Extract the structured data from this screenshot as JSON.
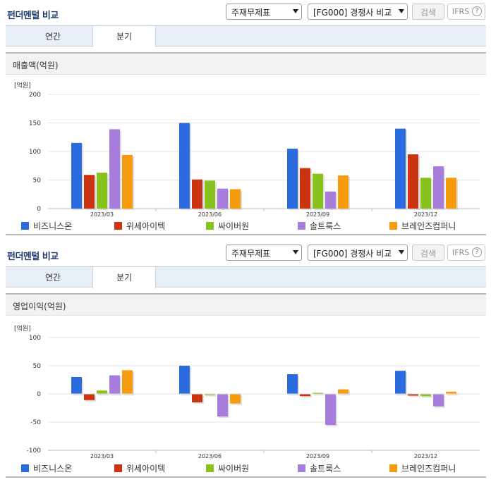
{
  "colors": [
    "#2a6be0",
    "#cc3311",
    "#88c21d",
    "#a77ddb",
    "#f59b0d"
  ],
  "panels": [
    {
      "header": {
        "title": "펀더멘털 비교",
        "select1": "주재무제표",
        "select2": "[FG000] 경쟁사 비교",
        "search_button": "검색",
        "ifrs": "IFRS",
        "help": "?"
      },
      "tabs": [
        "연간",
        "분기"
      ],
      "active_tab": 1,
      "chart_title": "매출액(억원)",
      "legend": [
        "비즈니스온",
        "위세아이텍",
        "싸이버원",
        "솔트룩스",
        "브레인즈컴퍼니"
      ]
    },
    {
      "header": {
        "title": "펀더멘털 비교",
        "select1": "주재무제표",
        "select2": "[FG000] 경쟁사 비교",
        "search_button": "검색",
        "ifrs": "IFRS",
        "help": "?"
      },
      "tabs": [
        "연간",
        "분기"
      ],
      "active_tab": 1,
      "chart_title": "영업이익(억원)",
      "legend": [
        "비즈니스온",
        "위세아이텍",
        "싸이버원",
        "솔트룩스",
        "브레인즈컴퍼니"
      ]
    }
  ],
  "chart_data": [
    {
      "type": "bar",
      "unit_label": "[억원]",
      "categories": [
        "2023/03",
        "2023/06",
        "2023/09",
        "2023/12"
      ],
      "ylim": [
        0,
        200
      ],
      "yticks": [
        0,
        50,
        100,
        150,
        200
      ],
      "series": [
        {
          "name": "비즈니스온",
          "values": [
            115,
            150,
            105,
            140
          ]
        },
        {
          "name": "위세아이텍",
          "values": [
            59,
            51,
            71,
            95
          ]
        },
        {
          "name": "싸이버원",
          "values": [
            63,
            49,
            61,
            54
          ]
        },
        {
          "name": "솔트룩스",
          "values": [
            139,
            35,
            30,
            74
          ]
        },
        {
          "name": "브레인즈컴퍼니",
          "values": [
            94,
            34,
            58,
            54
          ]
        }
      ]
    },
    {
      "type": "bar",
      "unit_label": "[억원]",
      "categories": [
        "2023/03",
        "2023/06",
        "2023/09",
        "2023/12"
      ],
      "ylim": [
        -100,
        100
      ],
      "yticks": [
        -100,
        -50,
        0,
        50,
        100
      ],
      "series": [
        {
          "name": "비즈니스온",
          "values": [
            30,
            50,
            35,
            41
          ]
        },
        {
          "name": "위세아이텍",
          "values": [
            -11,
            -15,
            -4,
            -3
          ]
        },
        {
          "name": "싸이버원",
          "values": [
            6,
            -2,
            2,
            -4
          ]
        },
        {
          "name": "솔트룩스",
          "values": [
            33,
            -40,
            -55,
            -22
          ]
        },
        {
          "name": "브레인즈컴퍼니",
          "values": [
            42,
            -17,
            8,
            4
          ]
        }
      ]
    }
  ]
}
